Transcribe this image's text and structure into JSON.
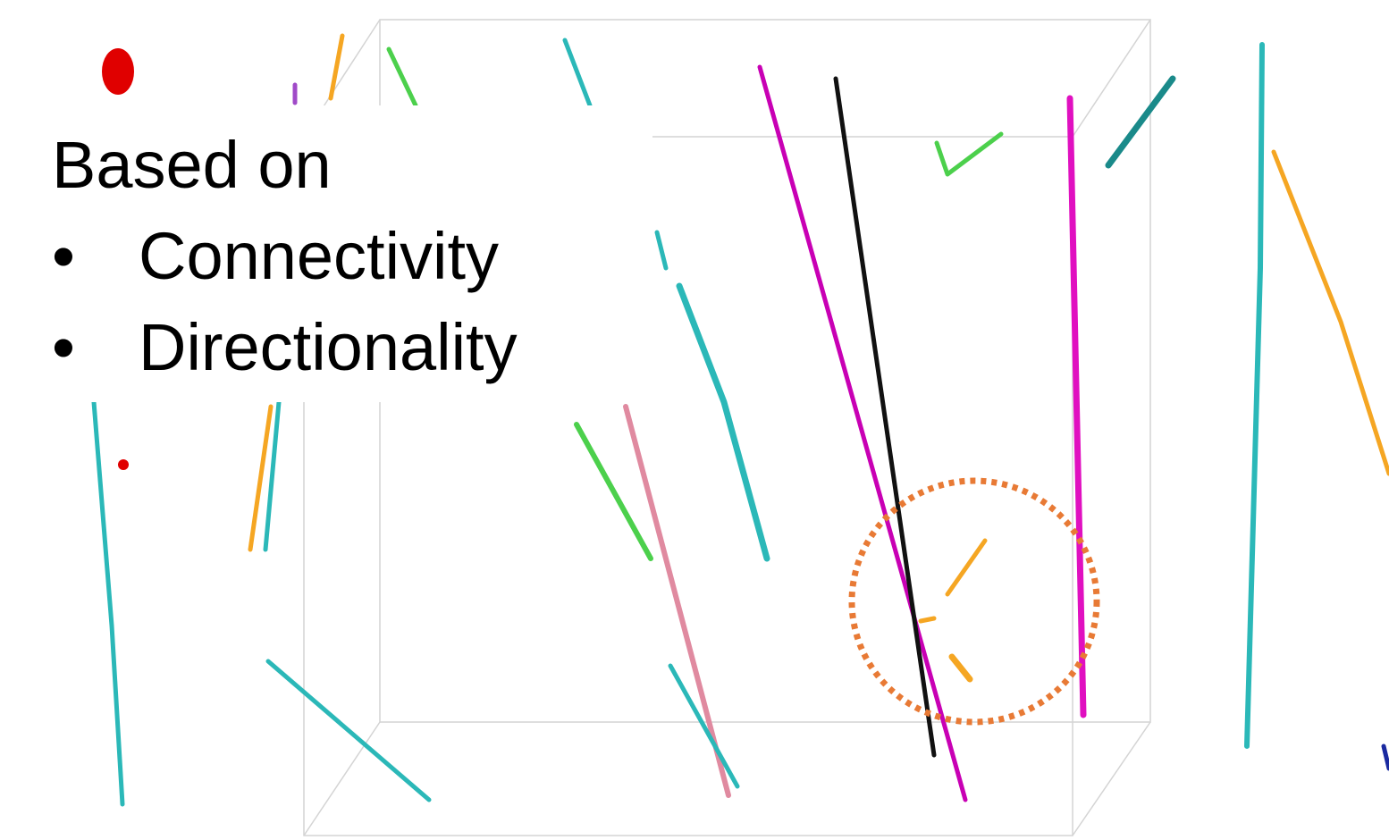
{
  "text": {
    "heading": "Based on",
    "items": [
      "Connectivity",
      "Directionality"
    ]
  }
}
